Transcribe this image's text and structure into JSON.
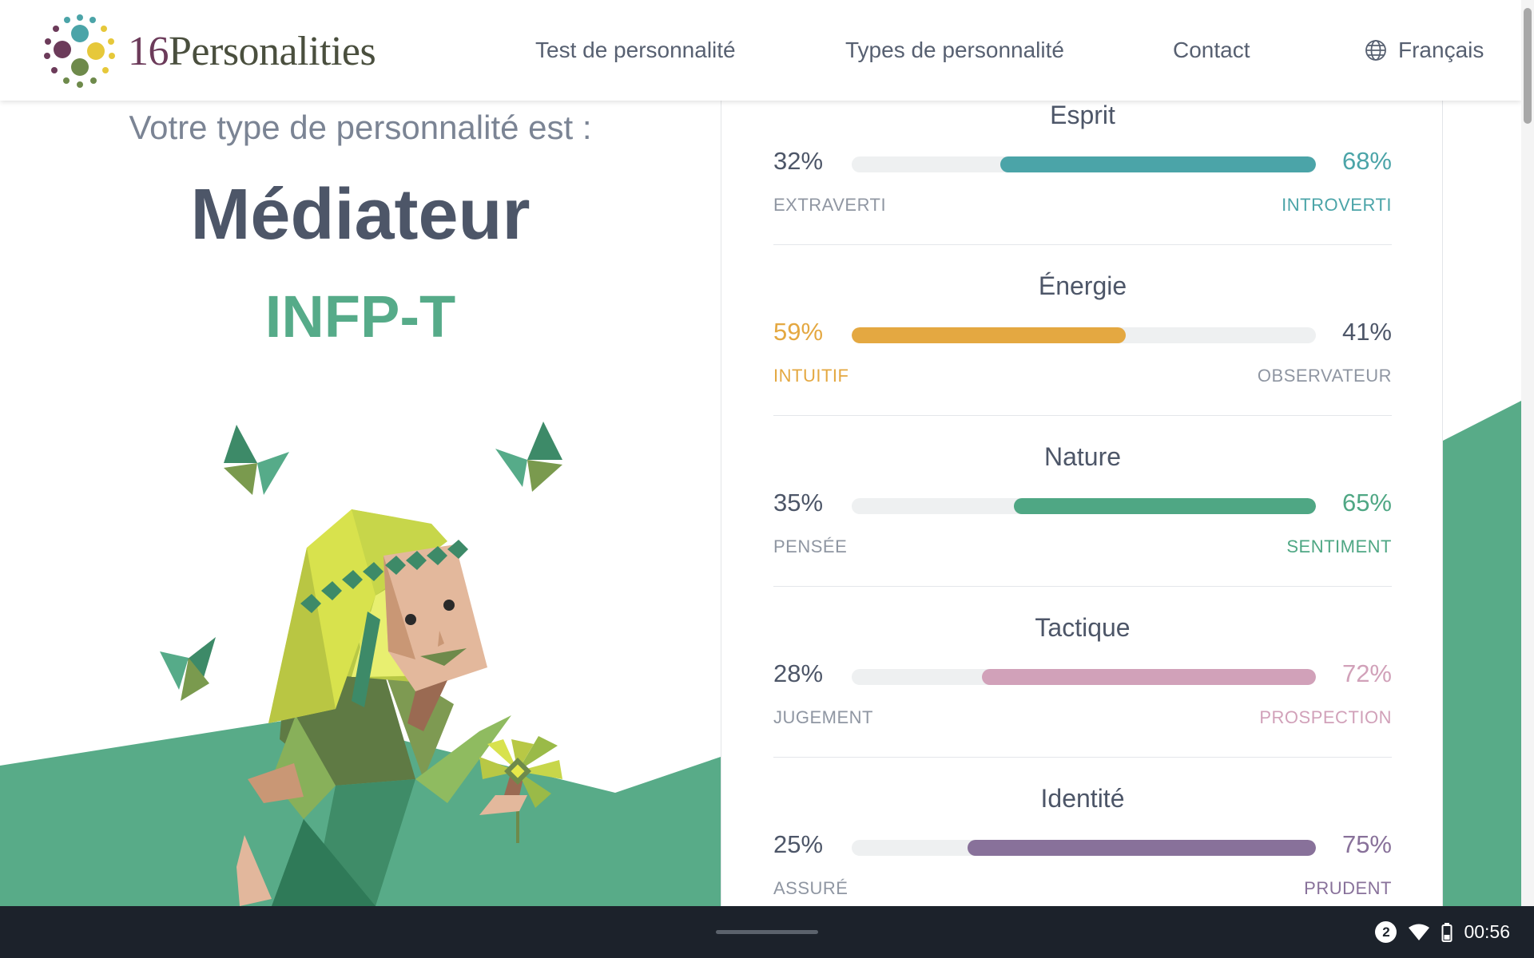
{
  "header": {
    "logo_num": "16",
    "logo_word": "Personalities",
    "nav": [
      {
        "label": "Test de personnalité"
      },
      {
        "label": "Types de personnalité"
      },
      {
        "label": "Contact"
      }
    ],
    "language": "Français",
    "language_icon": "globe-icon"
  },
  "result": {
    "intro": "Votre type de personnalité est :",
    "type_name": "Médiateur",
    "type_code": "INFP-T"
  },
  "traits": [
    {
      "title": "Esprit",
      "left_pct": "32%",
      "right_pct": "68%",
      "left_label": "EXTRAVERTI",
      "right_label": "INTROVERTI",
      "dominant": "right",
      "dominant_value": 68,
      "color": "#4ba4a8"
    },
    {
      "title": "Énergie",
      "left_pct": "59%",
      "right_pct": "41%",
      "left_label": "INTUITIF",
      "right_label": "OBSERVATEUR",
      "dominant": "left",
      "dominant_value": 59,
      "color": "#e4a841"
    },
    {
      "title": "Nature",
      "left_pct": "35%",
      "right_pct": "65%",
      "left_label": "PENSÉE",
      "right_label": "SENTIMENT",
      "dominant": "right",
      "dominant_value": 65,
      "color": "#4fa784"
    },
    {
      "title": "Tactique",
      "left_pct": "28%",
      "right_pct": "72%",
      "left_label": "JUGEMENT",
      "right_label": "PROSPECTION",
      "dominant": "right",
      "dominant_value": 72,
      "color": "#d1a1b9"
    },
    {
      "title": "Identité",
      "left_pct": "25%",
      "right_pct": "75%",
      "left_label": "ASSURÉ",
      "right_label": "PRUDENT",
      "dominant": "right",
      "dominant_value": 75,
      "color": "#88719a"
    }
  ],
  "colors": {
    "heading": "#4d5668",
    "accent_green": "#56ab89",
    "hill_green": "#58ab88"
  },
  "system_bar": {
    "notification_count": "2",
    "time": "00:56"
  }
}
